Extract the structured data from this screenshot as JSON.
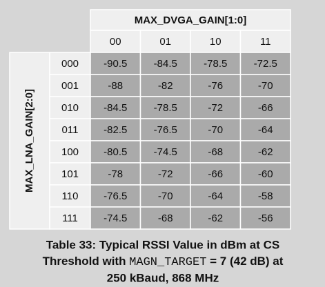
{
  "table": {
    "column_group": "MAX_DVGA_GAIN[1:0]",
    "row_group": "MAX_LNA_GAIN[2:0]",
    "columns": [
      "00",
      "01",
      "10",
      "11"
    ],
    "rows": [
      {
        "label": "000",
        "cells": [
          "-90.5",
          "-84.5",
          "-78.5",
          "-72.5"
        ]
      },
      {
        "label": "001",
        "cells": [
          "-88",
          "-82",
          "-76",
          "-70"
        ]
      },
      {
        "label": "010",
        "cells": [
          "-84.5",
          "-78.5",
          "-72",
          "-66"
        ]
      },
      {
        "label": "011",
        "cells": [
          "-82.5",
          "-76.5",
          "-70",
          "-64"
        ]
      },
      {
        "label": "100",
        "cells": [
          "-80.5",
          "-74.5",
          "-68",
          "-62"
        ]
      },
      {
        "label": "101",
        "cells": [
          "-78",
          "-72",
          "-66",
          "-60"
        ]
      },
      {
        "label": "110",
        "cells": [
          "-76.5",
          "-70",
          "-64",
          "-58"
        ]
      },
      {
        "label": "111",
        "cells": [
          "-74.5",
          "-68",
          "-62",
          "-56"
        ]
      }
    ]
  },
  "caption": {
    "line1": "Table 33: Typical RSSI Value in dBm at CS",
    "line2_start": "Threshold with ",
    "line2_code": "MAGN_TARGET",
    "line2_end": " = 7 (42 dB) at",
    "line3": "250 kBaud, 868 MHz"
  }
}
